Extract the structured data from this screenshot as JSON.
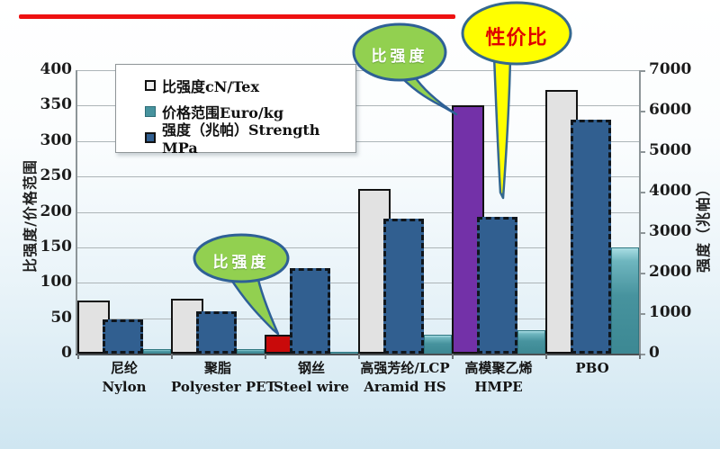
{
  "decor": {
    "red_line_color": "#ee1111"
  },
  "chart_data": {
    "type": "bar",
    "title": "",
    "categories_zh": [
      "尼纶",
      "聚脂",
      "钢丝",
      "高强芳纶/LCP",
      "高模聚乙烯",
      "PBO"
    ],
    "categories_en": [
      "Nylon",
      "Polyester PET",
      "Steel wire",
      "Aramid HS",
      "HMPE",
      ""
    ],
    "series": [
      {
        "name": "比强度cN/Tex",
        "axis": "left",
        "values": [
          75,
          77,
          27,
          232,
          350,
          372
        ],
        "bar_colors": [
          "#e2e2e2",
          "#e2e2e2",
          "#c90a0a",
          "#e2e2e2",
          "#7331a8",
          "#e2e2e2"
        ],
        "note": "steel wire bar highlighted red, HMPE bar highlighted purple"
      },
      {
        "name": "价格范围Euro/kg",
        "axis": "left",
        "values": [
          6,
          6,
          2,
          27,
          33,
          150
        ],
        "color": "#47939e"
      },
      {
        "name": "强度（兆帕）Strength MPa",
        "axis": "right",
        "values": [
          850,
          1050,
          2120,
          3330,
          3380,
          5780
        ],
        "color": "#315f90"
      }
    ],
    "left_axis": {
      "title": "比强度/价格范围",
      "min": 0,
      "max": 400,
      "step": 50
    },
    "right_axis": {
      "title": "强度（兆帕）",
      "min": 0,
      "max": 7000,
      "step": 1000
    },
    "grid": true,
    "legend_position": "top-left-inside"
  },
  "callouts": [
    {
      "text": "比强度",
      "fill": "#92d050",
      "text_color": "#ffffff"
    },
    {
      "text": "比强度",
      "fill": "#92d050",
      "text_color": "#ffffff"
    },
    {
      "text": "性价比",
      "fill": "#ffff00",
      "text_color": "#e00000"
    }
  ]
}
